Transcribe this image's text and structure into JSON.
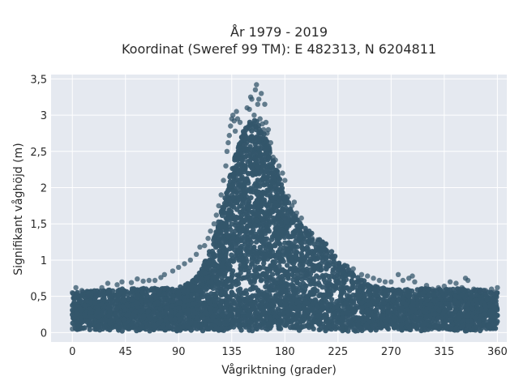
{
  "chart_data": {
    "type": "scatter",
    "title_line1": "År 1979 - 2019",
    "title_line2": "Koordinat (Sweref 99 TM): E 482313, N 6204811",
    "xlabel": "Vågriktning (grader)",
    "ylabel": "Signifikant våghöjd (m)",
    "xlim": [
      -18,
      368
    ],
    "ylim": [
      -0.13,
      3.56
    ],
    "x_ticks": [
      0,
      45,
      90,
      135,
      180,
      225,
      270,
      315,
      360
    ],
    "x_tick_labels": [
      "0",
      "45",
      "90",
      "135",
      "180",
      "225",
      "270",
      "315",
      "360"
    ],
    "y_ticks": [
      0,
      0.5,
      1,
      1.5,
      2,
      2.5,
      3,
      3.5
    ],
    "y_tick_labels": [
      "0",
      "0,5",
      "1",
      "1,5",
      "2",
      "2,5",
      "3",
      "3,5"
    ],
    "grid": true,
    "legend": "none",
    "marker_color": "#34566b",
    "background_color": "#e5e9f0",
    "points": [
      [
        0,
        0.05
      ],
      [
        0,
        0.55
      ],
      [
        3,
        0.62
      ],
      [
        8,
        0.58
      ],
      [
        13,
        0.5
      ],
      [
        20,
        0.52
      ],
      [
        25,
        0.62
      ],
      [
        30,
        0.68
      ],
      [
        38,
        0.66
      ],
      [
        42,
        0.7
      ],
      [
        50,
        0.69
      ],
      [
        55,
        0.74
      ],
      [
        60,
        0.71
      ],
      [
        65,
        0.72
      ],
      [
        70,
        0.72
      ],
      [
        75,
        0.76
      ],
      [
        78,
        0.8
      ],
      [
        85,
        0.85
      ],
      [
        90,
        0.9
      ],
      [
        95,
        0.95
      ],
      [
        100,
        1.0
      ],
      [
        105,
        1.08
      ],
      [
        108,
        1.18
      ],
      [
        112,
        1.2
      ],
      [
        115,
        1.3
      ],
      [
        117,
        1.4
      ],
      [
        120,
        1.5
      ],
      [
        122,
        1.62
      ],
      [
        124,
        1.75
      ],
      [
        126,
        1.9
      ],
      [
        128,
        2.1
      ],
      [
        130,
        2.3
      ],
      [
        131,
        2.5
      ],
      [
        132,
        2.62
      ],
      [
        133,
        2.72
      ],
      [
        134,
        2.85
      ],
      [
        135,
        2.95
      ],
      [
        136,
        3.0
      ],
      [
        137,
        2.92
      ],
      [
        138,
        2.78
      ],
      [
        139,
        3.05
      ],
      [
        140,
        2.95
      ],
      [
        142,
        2.9
      ],
      [
        144,
        2.7
      ],
      [
        145,
        2.6
      ],
      [
        146,
        2.75
      ],
      [
        148,
        3.1
      ],
      [
        150,
        3.08
      ],
      [
        151,
        3.25
      ],
      [
        152,
        3.22
      ],
      [
        154,
        3.0
      ],
      [
        155,
        3.35
      ],
      [
        156,
        3.42
      ],
      [
        157,
        3.15
      ],
      [
        158,
        3.22
      ],
      [
        159,
        2.95
      ],
      [
        160,
        3.3
      ],
      [
        161,
        2.88
      ],
      [
        162,
        2.8
      ],
      [
        163,
        3.15
      ],
      [
        164,
        2.9
      ],
      [
        165,
        2.75
      ],
      [
        166,
        2.8
      ],
      [
        168,
        2.62
      ],
      [
        170,
        2.42
      ],
      [
        172,
        2.38
      ],
      [
        175,
        2.3
      ],
      [
        178,
        2.2
      ],
      [
        180,
        2.1
      ],
      [
        183,
        1.88
      ],
      [
        186,
        1.75
      ],
      [
        188,
        1.8
      ],
      [
        190,
        1.65
      ],
      [
        194,
        1.58
      ],
      [
        198,
        1.4
      ],
      [
        203,
        1.3
      ],
      [
        208,
        1.28
      ],
      [
        212,
        1.25
      ],
      [
        216,
        1.12
      ],
      [
        220,
        1.05
      ],
      [
        225,
        0.95
      ],
      [
        229,
        0.88
      ],
      [
        233,
        0.85
      ],
      [
        238,
        0.88
      ],
      [
        245,
        0.8
      ],
      [
        250,
        0.78
      ],
      [
        255,
        0.75
      ],
      [
        260,
        0.72
      ],
      [
        265,
        0.7
      ],
      [
        270,
        0.7
      ],
      [
        276,
        0.8
      ],
      [
        280,
        0.72
      ],
      [
        285,
        0.75
      ],
      [
        288,
        0.78
      ],
      [
        290,
        0.7
      ],
      [
        295,
        0.6
      ],
      [
        300,
        0.65
      ],
      [
        305,
        0.6
      ],
      [
        310,
        0.62
      ],
      [
        315,
        0.64
      ],
      [
        320,
        0.7
      ],
      [
        325,
        0.68
      ],
      [
        330,
        0.62
      ],
      [
        333,
        0.75
      ],
      [
        335,
        0.72
      ],
      [
        340,
        0.6
      ],
      [
        345,
        0.58
      ],
      [
        350,
        0.58
      ],
      [
        355,
        0.6
      ],
      [
        358,
        0.56
      ],
      [
        360,
        0.62
      ]
    ]
  }
}
